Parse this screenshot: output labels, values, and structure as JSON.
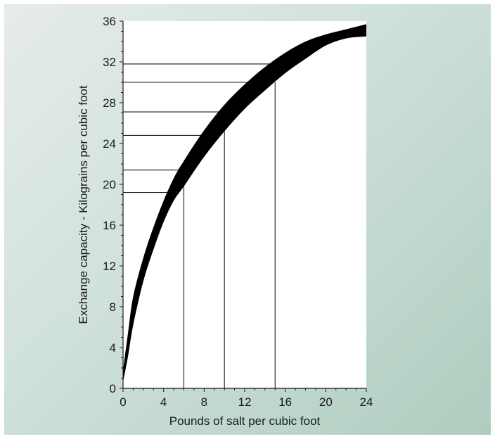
{
  "chart_data": {
    "type": "area",
    "xlabel": "Pounds of salt per cubic foot",
    "ylabel": "Exchange capacity - Kilograins per cubic foot",
    "xlim": [
      0,
      24
    ],
    "ylim": [
      0,
      36
    ],
    "x_ticks": [
      "0",
      "4",
      "8",
      "12",
      "16",
      "20",
      "24"
    ],
    "y_ticks": [
      "0",
      "4",
      "8",
      "12",
      "16",
      "20",
      "24",
      "28",
      "32",
      "36"
    ],
    "grid": false,
    "band": {
      "x": [
        0,
        0.5,
        1,
        2,
        3,
        4,
        5,
        6,
        8,
        10,
        12,
        14,
        16,
        18,
        20,
        22,
        24
      ],
      "upper": [
        1.8,
        5.5,
        9,
        12.8,
        15.8,
        18.4,
        20.6,
        22.3,
        25.3,
        27.8,
        29.8,
        31.5,
        32.9,
        34.0,
        34.7,
        35.2,
        35.7
      ],
      "lower": [
        0.6,
        3.2,
        6.2,
        10.5,
        13.6,
        16.3,
        18.4,
        19.8,
        22.7,
        25.2,
        27.4,
        29.2,
        30.9,
        32.3,
        33.6,
        34.3,
        34.5
      ]
    },
    "reference_lines": {
      "horizontal": [
        {
          "y": 31.8,
          "x_end": 15
        },
        {
          "y": 30.0,
          "x_end": 13
        },
        {
          "y": 27.1,
          "x_end": 10
        },
        {
          "y": 24.8,
          "x_end": 8
        },
        {
          "y": 21.4,
          "x_end": 5.5
        },
        {
          "y": 19.2,
          "x_end": 4.5
        }
      ],
      "vertical": [
        {
          "x": 6,
          "y_end": 19.8
        },
        {
          "x": 10,
          "y_end": 25.2
        },
        {
          "x": 15,
          "y_end": 30.0
        }
      ]
    },
    "colors": {
      "band": "#000000",
      "lines": "#1a1a1a",
      "plot_background": "#ffffff"
    }
  }
}
